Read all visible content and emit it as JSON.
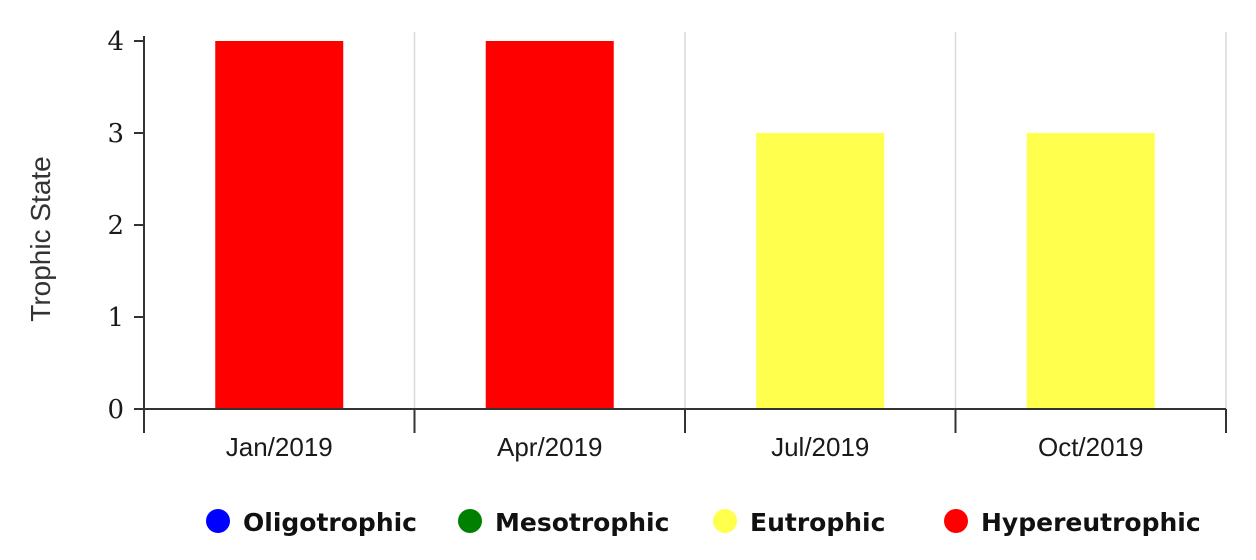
{
  "chart_data": {
    "type": "bar",
    "categories": [
      "Jan/2019",
      "Apr/2019",
      "Jul/2019",
      "Oct/2019"
    ],
    "values": [
      4,
      4,
      3,
      3
    ],
    "bar_colors": [
      "#ff0000",
      "#ff0000",
      "#ffff4d",
      "#ffff4d"
    ],
    "title": "",
    "xlabel": "",
    "ylabel": "Trophic State",
    "ylim": [
      0,
      4
    ],
    "yticks": [
      0,
      1,
      2,
      3,
      4
    ],
    "grid": "vertical",
    "legend_position": "bottom",
    "legend": [
      {
        "label": "Oligotrophic",
        "color": "#0000ff"
      },
      {
        "label": "Mesotrophic",
        "color": "#008000"
      },
      {
        "label": "Eutrophic",
        "color": "#ffff4d"
      },
      {
        "label": "Hypereutrophic",
        "color": "#ff0000"
      }
    ]
  }
}
